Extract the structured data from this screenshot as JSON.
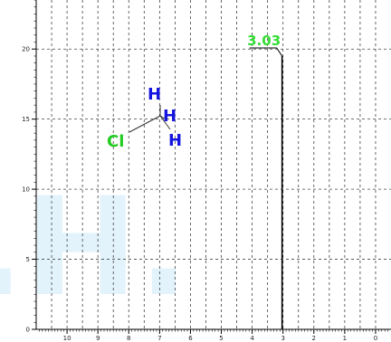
{
  "chart_data": {
    "type": "line",
    "title": "",
    "xlabel": "",
    "ylabel": "",
    "xlim": [
      11,
      -0.5
    ],
    "ylim": [
      0,
      23.5
    ],
    "x_ticks": [
      10,
      9,
      8,
      7,
      6,
      5,
      4,
      3,
      2,
      1,
      0
    ],
    "x_tick_labels": [
      "10",
      "9",
      "8",
      "7",
      "6",
      "5",
      "4",
      "3",
      "2",
      "1",
      "0"
    ],
    "y_ticks": [
      0,
      5,
      10,
      15,
      20
    ],
    "y_tick_labels": [
      "0",
      "5",
      "10",
      "15",
      "20"
    ],
    "grid": true,
    "series": [
      {
        "x": [
          3.03,
          3.03
        ],
        "y": [
          0,
          19.5
        ]
      }
    ],
    "peaks": [
      {
        "x": 3.03,
        "label": "3.03"
      }
    ],
    "colors": {
      "peak_label": "#33dd33",
      "hydrogen": "#1515e0",
      "chlorine": "#22cc22",
      "watermark": "#e3f3fc"
    }
  },
  "molecule": {
    "atoms": [
      {
        "symbol": "H",
        "role": "hydrogen-top"
      },
      {
        "symbol": "H",
        "role": "hydrogen-right"
      },
      {
        "symbol": "H",
        "role": "hydrogen-bottom"
      },
      {
        "symbol": "Cl",
        "role": "chlorine"
      }
    ]
  },
  "watermark": ".H."
}
